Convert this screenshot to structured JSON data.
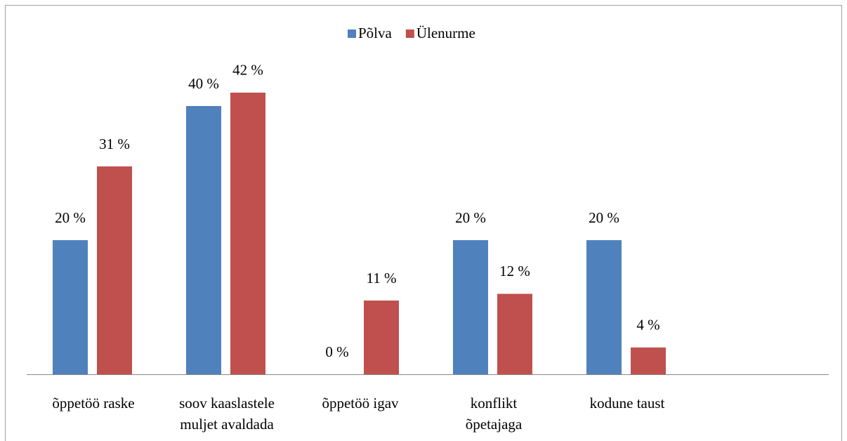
{
  "chart_data": {
    "type": "bar",
    "categories": [
      "õppetöö raske",
      "soov kaaslastele\nmuljet avaldada",
      "õppetöö igav",
      "konflikt\nõpetajaga",
      "kodune taust",
      null
    ],
    "series": [
      {
        "name": "Põlva",
        "color": "#4f81bd",
        "values": [
          20,
          40,
          0,
          20,
          20,
          null
        ],
        "value_labels": [
          "20 %",
          "40 %",
          "0 %",
          "20 %",
          "20 %",
          null
        ]
      },
      {
        "name": "Ülenurme",
        "color": "#c0504d",
        "values": [
          31,
          42,
          11,
          12,
          4,
          null
        ],
        "value_labels": [
          "31 %",
          "42 %",
          "11 %",
          "12 %",
          "4 %",
          null
        ]
      }
    ],
    "legend": "top"
  }
}
